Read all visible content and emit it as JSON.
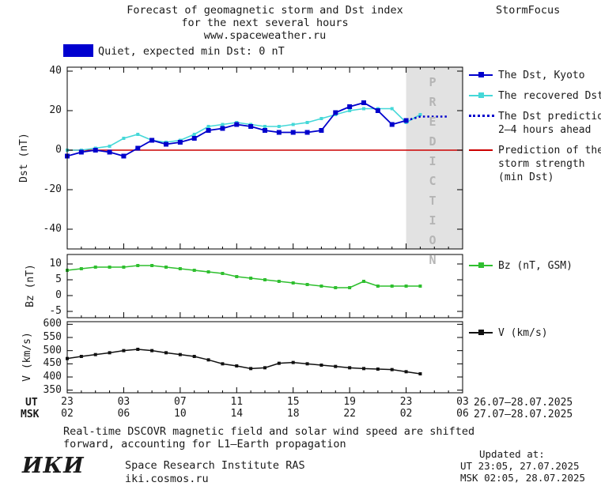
{
  "header": {
    "title_line1": "Forecast of geomagnetic storm and Dst index",
    "title_line2": "for the next several hours",
    "title_line3": "www.spaceweather.ru",
    "brand": "StormFocus"
  },
  "banner": {
    "label": "Quiet, expected min Dst: 0 nT",
    "color": "#0000d0"
  },
  "prediction_band_label": "PREDICTION",
  "legend": {
    "dst_kyoto": "The Dst, Kyoto",
    "recovered": "The recovered Dst",
    "prediction_l1": "The Dst prediction",
    "prediction_l2": "2–4 hours ahead",
    "storm_l1": "Prediction of the",
    "storm_l2": "storm strength",
    "storm_l3": "(min Dst)",
    "bz": "Bz (nT, GSM)",
    "v": "V (km/s)"
  },
  "axis": {
    "dst_label": "Dst (nT)",
    "bz_label": "Bz (nT)",
    "v_label": "V (km/s)",
    "ut_label": "UT",
    "msk_label": "MSK",
    "ut_range": "26.07–28.07.2025",
    "msk_range": "27.07–28.07.2025"
  },
  "footer": {
    "note_line1": "Real-time DSCOVR magnetic field and solar wind speed are shifted",
    "note_line2": "forward, accounting for L1–Earth propagation",
    "logo": "ИКИ",
    "institute": "Space Research Institute RAS",
    "site": "iki.cosmos.ru",
    "updated_label": "Updated at:",
    "updated_ut": "UT  23:05, 27.07.2025",
    "updated_msk": "MSK 02:05, 28.07.2025"
  },
  "chart_data": [
    {
      "type": "line",
      "title": "Forecast of geomagnetic storm and Dst index",
      "ylabel": "Dst (nT)",
      "ylim": [
        -50,
        42
      ],
      "yticks": [
        40,
        20,
        0,
        -20,
        -40
      ],
      "xlim_hours": [
        0,
        28
      ],
      "xticks_ut": [
        "23",
        "03",
        "07",
        "11",
        "15",
        "19",
        "23",
        "03"
      ],
      "xticks_msk": [
        "02",
        "06",
        "10",
        "14",
        "18",
        "22",
        "02",
        "06"
      ],
      "prediction_band_hours": [
        24,
        28
      ],
      "legend_position": "right",
      "grid": false,
      "series": [
        {
          "name": "Prediction of the storm strength (min Dst)",
          "color": "#cc0000",
          "width": 1.5,
          "x": [
            0,
            28
          ],
          "values": [
            0,
            0
          ]
        },
        {
          "name": "The recovered Dst",
          "color": "#45d8d8",
          "width": 1.6,
          "marker": "square",
          "marker_size": 4,
          "x": [
            0,
            1,
            2,
            3,
            4,
            5,
            6,
            7,
            8,
            9,
            10,
            11,
            12,
            13,
            14,
            15,
            16,
            17,
            18,
            19,
            20,
            21,
            22,
            23,
            24,
            25
          ],
          "values": [
            0,
            0,
            1,
            2,
            6,
            8,
            5,
            4,
            5,
            8,
            12,
            13,
            14,
            13,
            12,
            12,
            13,
            14,
            16,
            18,
            20,
            21,
            21,
            21,
            14,
            18
          ]
        },
        {
          "name": "The Dst, Kyoto",
          "color": "#0000cc",
          "width": 1.8,
          "marker": "square",
          "marker_size": 6,
          "x": [
            0,
            1,
            2,
            3,
            4,
            5,
            6,
            7,
            8,
            9,
            10,
            11,
            12,
            13,
            14,
            15,
            16,
            17,
            18,
            19,
            20,
            21,
            22,
            23,
            24
          ],
          "values": [
            -3,
            -1,
            0,
            -1,
            -3,
            1,
            5,
            3,
            4,
            6,
            10,
            11,
            13,
            12,
            10,
            9,
            9,
            9,
            10,
            19,
            22,
            24,
            20,
            13,
            15
          ]
        },
        {
          "name": "The Dst prediction 2–4 hours ahead",
          "color": "#0000cc",
          "width": 2.5,
          "dash": true,
          "x": [
            24,
            25,
            26,
            27
          ],
          "values": [
            15,
            17,
            17,
            17
          ]
        }
      ]
    },
    {
      "type": "line",
      "ylabel": "Bz (nT)",
      "ylim": [
        -7,
        13
      ],
      "yticks": [
        10,
        5,
        0,
        -5
      ],
      "xlim_hours": [
        0,
        28
      ],
      "grid": false,
      "series": [
        {
          "name": "Bz (nT, GSM)",
          "color": "#2fbf2f",
          "width": 1.6,
          "marker": "square",
          "marker_size": 4,
          "x": [
            0,
            1,
            2,
            3,
            4,
            5,
            6,
            7,
            8,
            9,
            10,
            11,
            12,
            13,
            14,
            15,
            16,
            17,
            18,
            19,
            20,
            21,
            22,
            23,
            24,
            25
          ],
          "values": [
            8,
            8.5,
            9,
            9,
            9,
            9.5,
            9.5,
            9,
            8.5,
            8,
            7.5,
            7,
            6,
            5.5,
            5,
            4.5,
            4,
            3.5,
            3,
            2.5,
            2.5,
            4.5,
            3,
            3,
            3,
            3
          ]
        }
      ]
    },
    {
      "type": "line",
      "ylabel": "V (km/s)",
      "ylim": [
        340,
        610
      ],
      "yticks": [
        600,
        550,
        500,
        450,
        400,
        350
      ],
      "xlim_hours": [
        0,
        28
      ],
      "grid": false,
      "series": [
        {
          "name": "V (km/s)",
          "color": "#111111",
          "width": 1.5,
          "marker": "square",
          "marker_size": 4,
          "x": [
            0,
            1,
            2,
            3,
            4,
            5,
            6,
            7,
            8,
            9,
            10,
            11,
            12,
            13,
            14,
            15,
            16,
            17,
            18,
            19,
            20,
            21,
            22,
            23,
            24,
            25
          ],
          "values": [
            470,
            478,
            485,
            492,
            500,
            505,
            500,
            492,
            485,
            478,
            465,
            450,
            442,
            432,
            435,
            452,
            455,
            450,
            445,
            440,
            435,
            432,
            430,
            428,
            420,
            412
          ]
        }
      ]
    }
  ]
}
